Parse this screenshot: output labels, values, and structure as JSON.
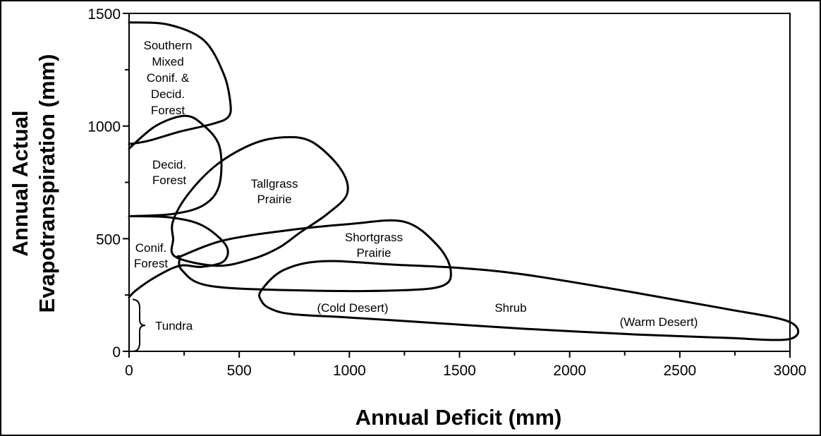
{
  "chart_data": {
    "type": "diagram",
    "title": "",
    "xlabel": "Annual Deficit (mm)",
    "ylabel_lines": [
      "Annual Actual",
      "Evapotranspiration (mm)"
    ],
    "xlim": [
      0,
      3000
    ],
    "ylim": [
      0,
      1500
    ],
    "x_ticks": [
      "0",
      "500",
      "1000",
      "1500",
      "2000",
      "2500",
      "3000"
    ],
    "y_ticks": [
      "0",
      "500",
      "1000",
      "1500"
    ],
    "regions": [
      {
        "id": "southern-mixed",
        "label_lines": [
          "Southern",
          "Mixed",
          "Conif. &",
          "Decid.",
          "Forest"
        ],
        "outline": [
          [
            0,
            1460
          ],
          [
            180,
            1450
          ],
          [
            340,
            1380
          ],
          [
            430,
            1230
          ],
          [
            460,
            1100
          ],
          [
            450,
            1040
          ],
          [
            380,
            1010
          ],
          [
            230,
            975
          ],
          [
            90,
            935
          ],
          [
            0,
            920
          ]
        ]
      },
      {
        "id": "decid-forest",
        "label_lines": [
          "Decid.",
          "Forest"
        ],
        "outline": [
          [
            0,
            900
          ],
          [
            120,
            1000
          ],
          [
            250,
            1045
          ],
          [
            330,
            1010
          ],
          [
            410,
            910
          ],
          [
            410,
            740
          ],
          [
            340,
            650
          ],
          [
            200,
            610
          ],
          [
            0,
            600
          ]
        ]
      },
      {
        "id": "tallgrass",
        "label_lines": [
          "Tallgrass",
          "Prairie"
        ],
        "outline": [
          [
            200,
            580
          ],
          [
            270,
            700
          ],
          [
            400,
            830
          ],
          [
            560,
            920
          ],
          [
            700,
            950
          ],
          [
            830,
            930
          ],
          [
            960,
            810
          ],
          [
            990,
            700
          ],
          [
            900,
            610
          ],
          [
            780,
            530
          ],
          [
            680,
            460
          ],
          [
            560,
            410
          ],
          [
            400,
            380
          ],
          [
            210,
            420
          ],
          [
            200,
            500
          ]
        ]
      },
      {
        "id": "conif-forest",
        "label_lines": [
          "Conif.",
          "Forest"
        ],
        "outline": [
          [
            0,
            600
          ],
          [
            180,
            595
          ],
          [
            330,
            560
          ],
          [
            440,
            470
          ],
          [
            430,
            400
          ],
          [
            330,
            375
          ],
          [
            230,
            380
          ],
          [
            120,
            330
          ],
          [
            30,
            270
          ],
          [
            0,
            240
          ]
        ]
      },
      {
        "id": "shortgrass",
        "label_lines": [
          "Shortgrass",
          "Prairie"
        ],
        "outline": [
          [
            230,
            420
          ],
          [
            420,
            490
          ],
          [
            700,
            535
          ],
          [
            1000,
            565
          ],
          [
            1250,
            575
          ],
          [
            1400,
            470
          ],
          [
            1460,
            360
          ],
          [
            1420,
            290
          ],
          [
            1200,
            270
          ],
          [
            800,
            270
          ],
          [
            370,
            290
          ],
          [
            240,
            360
          ],
          [
            230,
            420
          ]
        ]
      },
      {
        "id": "shrub",
        "label_lines": [
          "Shrub"
        ],
        "outline": [
          [
            600,
            270
          ],
          [
            700,
            360
          ],
          [
            880,
            400
          ],
          [
            1200,
            385
          ],
          [
            1500,
            370
          ],
          [
            1800,
            340
          ],
          [
            2300,
            260
          ],
          [
            2700,
            190
          ],
          [
            3000,
            130
          ],
          [
            3000,
            55
          ],
          [
            2700,
            60
          ],
          [
            2300,
            75
          ],
          [
            1800,
            100
          ],
          [
            1400,
            125
          ],
          [
            1000,
            150
          ],
          [
            740,
            165
          ],
          [
            640,
            190
          ],
          [
            600,
            225
          ]
        ]
      }
    ],
    "labels": [
      {
        "id": "cold-desert",
        "text": "(Cold Desert)"
      },
      {
        "id": "warm-desert",
        "text": "(Warm Desert)"
      },
      {
        "id": "tundra",
        "text": "Tundra",
        "range": [
          0,
          230
        ]
      }
    ]
  }
}
